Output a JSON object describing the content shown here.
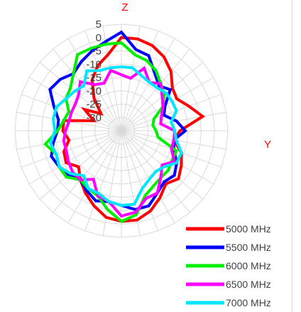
{
  "chart_data": {
    "type": "radar",
    "title": "",
    "top_label": "Z",
    "side_label": "Y",
    "radial_axis": {
      "ticks": [
        5,
        0,
        -5,
        -10,
        -15,
        -20,
        -25,
        -30
      ],
      "min": -35,
      "max": 5
    },
    "grid": true,
    "legend_position": "bottom-right",
    "categories_count": 36,
    "series": [
      {
        "name": "5000 MHz",
        "color": "#ff0000",
        "values": [
          0,
          0,
          -1,
          -3,
          -6,
          -10,
          -11,
          -8,
          -4,
          -13,
          -15,
          -11,
          -9,
          -7,
          -9,
          -6,
          -3,
          -1,
          -1,
          -2,
          -5,
          -8,
          -11,
          -14,
          -11,
          -12,
          -15,
          -13,
          -13,
          -24,
          -19,
          -25,
          -19,
          -13,
          -9,
          -6
        ]
      },
      {
        "name": "5500 MHz",
        "color": "#0000ff",
        "values": [
          2,
          -4,
          -5,
          -10,
          -13,
          -11,
          -16,
          -18,
          -14,
          -11,
          -15,
          -14,
          -11,
          -9,
          -10,
          -8,
          -5,
          -5,
          -7,
          -8,
          -7,
          -9,
          -11,
          -9,
          -8,
          -7,
          -9,
          -11,
          -11,
          -8,
          -4,
          -5,
          -7,
          -5,
          -3,
          -1
        ]
      },
      {
        "name": "6000 MHz",
        "color": "#00ee00",
        "values": [
          -2,
          -6,
          -7,
          -9,
          -12,
          -14,
          -17,
          -22,
          -23,
          -22,
          -21,
          -13,
          -13,
          -12,
          -12,
          -11,
          -9,
          -3,
          -1,
          -5,
          -9,
          -10,
          -11,
          -8,
          -8,
          -9,
          -6,
          -11,
          -13,
          -14,
          -11,
          -10,
          -7,
          -2,
          -2,
          -2
        ]
      },
      {
        "name": "6500 MHz",
        "color": "#ff00ff",
        "values": [
          -14,
          -15,
          -10,
          -14,
          -12,
          -15,
          -17,
          -19,
          -20,
          -15,
          -15,
          -15,
          -12,
          -15,
          -12,
          -8,
          -8,
          -4,
          -3,
          -8,
          -9,
          -14,
          -11,
          -11,
          -12,
          -13,
          -13,
          -14,
          -15,
          -15,
          -15,
          -14,
          -11,
          -15,
          -16,
          -12
        ]
      },
      {
        "name": "7000 MHz",
        "color": "#00e6ff",
        "values": [
          -11,
          -11,
          -13,
          -14,
          -14,
          -13,
          -13,
          -13,
          -16,
          -15,
          -14,
          -11,
          -11,
          -14,
          -15,
          -14,
          -12,
          -7,
          -7,
          -8,
          -10,
          -10,
          -13,
          -10,
          -8,
          -9,
          -8,
          -10,
          -9,
          -9,
          -11,
          -12,
          -13,
          -9,
          -11,
          -11
        ]
      }
    ]
  }
}
